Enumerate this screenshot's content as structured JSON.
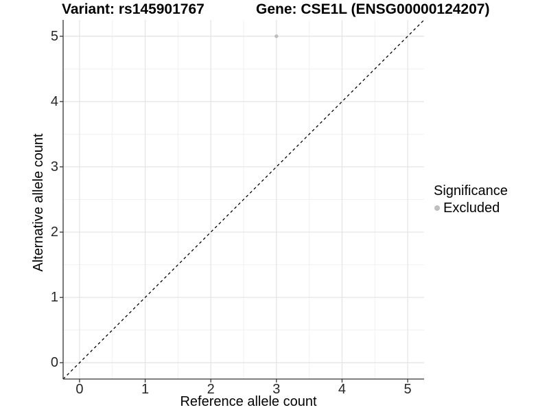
{
  "header": {
    "title_left": "Variant: rs145901767",
    "title_right": "Gene: CSE1L (ENSG00000124207)"
  },
  "chart_data": {
    "type": "scatter",
    "xlabel": "Reference allele count",
    "ylabel": "Alternative allele count",
    "xlim": [
      -0.25,
      5.25
    ],
    "ylim": [
      -0.25,
      5.25
    ],
    "x_ticks": [
      0,
      1,
      2,
      3,
      4,
      5
    ],
    "y_ticks": [
      0,
      1,
      2,
      3,
      4,
      5
    ],
    "x_minor_ticks": [
      0.5,
      1.5,
      2.5,
      3.5,
      4.5
    ],
    "y_minor_ticks": [
      0.5,
      1.5,
      2.5,
      3.5,
      4.5
    ],
    "grid": "major+minor",
    "series": [
      {
        "name": "Excluded",
        "marker": "circle",
        "color": "#bebebe",
        "points": [
          {
            "x": 3,
            "y": 5
          }
        ]
      }
    ],
    "reference_line": {
      "type": "identity y=x",
      "style": "dashed",
      "color": "#000000",
      "x_start": -0.25,
      "x_end": 5.25
    },
    "legend": {
      "title": "Significance",
      "position": "right",
      "items": [
        {
          "label": "Excluded",
          "marker": "circle",
          "color": "#bebebe"
        }
      ]
    },
    "colors": {
      "background": "#ffffff",
      "grid_major": "#e3e3e3",
      "grid_minor": "#f1f1f1",
      "axis_line": "#333333",
      "tick_mark": "#333333",
      "point": "#bebebe",
      "dashed_line": "#000000"
    }
  }
}
